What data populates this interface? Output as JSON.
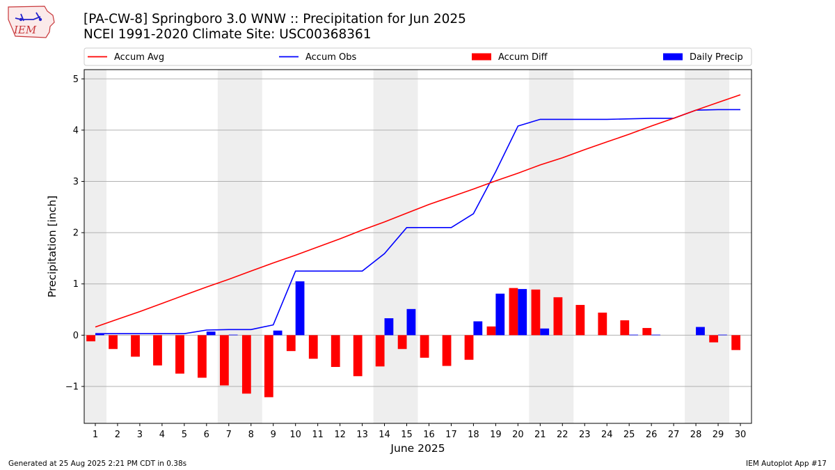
{
  "header": {
    "title_line1": "[PA-CW-8] Springboro 3.0 WNW :: Precipitation for Jun 2025",
    "title_line2": "NCEI 1991-2020 Climate Site: USC00368361",
    "logo_text": "IEM"
  },
  "footer": {
    "left": "Generated at 25 Aug 2025 2:21 PM CDT in 0.38s",
    "right": "IEM Autoplot App #17"
  },
  "colors": {
    "avg": "#ff0000",
    "obs": "#0000ff",
    "diff": "#ff0000",
    "daily": "#0000ff",
    "weekend": "#eeeeee",
    "grid": "#b0b0b0"
  },
  "chart_data": {
    "type": "bar",
    "xlabel": "June 2025",
    "ylabel": "Precipitation [inch]",
    "ylim": [
      -1.72,
      5.18
    ],
    "yticks": [
      -1,
      0,
      1,
      2,
      3,
      4,
      5
    ],
    "ytick_labels": [
      "−1",
      "0",
      "1",
      "2",
      "3",
      "4",
      "5"
    ],
    "x": [
      1,
      2,
      3,
      4,
      5,
      6,
      7,
      8,
      9,
      10,
      11,
      12,
      13,
      14,
      15,
      16,
      17,
      18,
      19,
      20,
      21,
      22,
      23,
      24,
      25,
      26,
      27,
      28,
      29,
      30
    ],
    "shaded_days": [
      [
        1,
        1
      ],
      [
        7,
        8
      ],
      [
        14,
        15
      ],
      [
        21,
        22
      ],
      [
        28,
        29
      ]
    ],
    "grid": "y",
    "legend_placement": "top",
    "legend": [
      "Accum Avg",
      "Accum Obs",
      "Accum Diff",
      "Daily Precip"
    ],
    "series": [
      {
        "name": "Accum Avg",
        "kind": "line",
        "values": [
          0.16,
          0.31,
          0.46,
          0.62,
          0.78,
          0.94,
          1.09,
          1.25,
          1.41,
          1.56,
          1.72,
          1.88,
          2.05,
          2.21,
          2.38,
          2.55,
          2.7,
          2.85,
          3.01,
          3.16,
          3.32,
          3.46,
          3.62,
          3.77,
          3.92,
          4.08,
          4.23,
          4.39,
          4.54,
          4.69
        ]
      },
      {
        "name": "Accum Obs",
        "kind": "line",
        "values": [
          0.03,
          0.03,
          0.03,
          0.03,
          0.03,
          0.1,
          0.11,
          0.11,
          0.2,
          1.25,
          1.25,
          1.25,
          1.25,
          1.59,
          2.1,
          2.1,
          2.1,
          2.37,
          3.19,
          4.08,
          4.21,
          4.21,
          4.21,
          4.21,
          4.22,
          4.23,
          4.23,
          4.39,
          4.4,
          4.4
        ]
      },
      {
        "name": "Accum Diff",
        "kind": "bar",
        "values": [
          -0.12,
          -0.27,
          -0.42,
          -0.59,
          -0.75,
          -0.83,
          -0.98,
          -1.14,
          -1.21,
          -0.31,
          -0.46,
          -0.62,
          -0.8,
          -0.61,
          -0.27,
          -0.44,
          -0.6,
          -0.48,
          0.17,
          0.92,
          0.89,
          0.74,
          0.59,
          0.44,
          0.29,
          0.14,
          0.0,
          0.0,
          -0.14,
          -0.29
        ]
      },
      {
        "name": "Daily Precip",
        "kind": "bar",
        "values": [
          0.03,
          0,
          0,
          0,
          0,
          0.07,
          0.01,
          0,
          0.09,
          1.05,
          0,
          0,
          0,
          0.33,
          0.51,
          0,
          0,
          0.27,
          0.81,
          0.9,
          0.13,
          0,
          0,
          0,
          0.01,
          0.01,
          0,
          0.16,
          0.01,
          0
        ]
      }
    ]
  }
}
